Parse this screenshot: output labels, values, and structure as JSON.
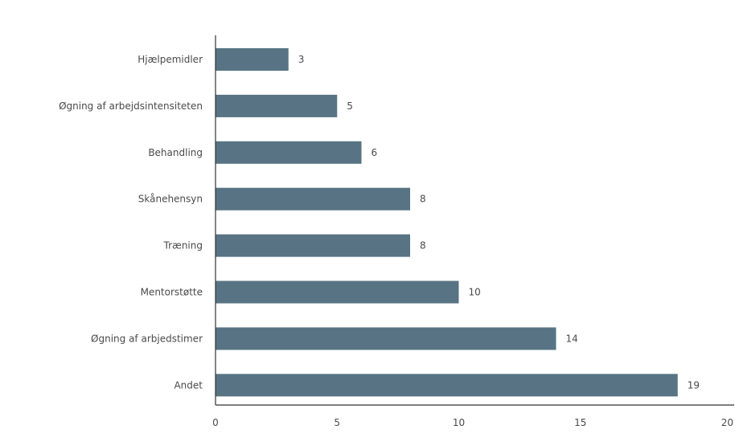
{
  "chart_data": {
    "type": "bar",
    "orientation": "horizontal",
    "title": "",
    "xlabel": "",
    "ylabel": "",
    "categories": [
      "Hjælpemidler",
      "Øgning af arbejdsintensiteten",
      "Behandling",
      "Skånehensyn",
      "Træning",
      "Mentorstøtte",
      "Øgning af arbjedstimer",
      "Andet"
    ],
    "values": [
      3,
      5,
      6,
      8,
      8,
      10,
      14,
      19
    ],
    "value_labels": [
      "3",
      "5",
      "6",
      "8",
      "8",
      "10",
      "14",
      "19"
    ],
    "xlim": [
      0,
      20
    ],
    "xticks": [
      0,
      5,
      10,
      15,
      20
    ],
    "grid": false,
    "legend": "none",
    "colors": {
      "bar": "#587484",
      "axis": "#333333",
      "text": "#4a4a4a"
    }
  }
}
